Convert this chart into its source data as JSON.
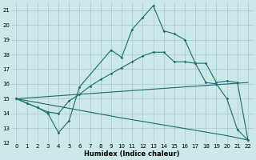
{
  "xlabel": "Humidex (Indice chaleur)",
  "bg_color": "#cce8e8",
  "grid_color": "#aacece",
  "line_color": "#1a6b6b",
  "xlim": [
    -0.5,
    22.5
  ],
  "ylim": [
    12,
    21.5
  ],
  "yticks": [
    12,
    13,
    14,
    15,
    16,
    17,
    18,
    19,
    20,
    21
  ],
  "xticks": [
    0,
    1,
    2,
    3,
    4,
    5,
    6,
    7,
    8,
    9,
    10,
    11,
    12,
    13,
    14,
    15,
    16,
    17,
    18,
    19,
    20,
    21,
    22
  ],
  "lines": [
    {
      "x": [
        0,
        1,
        2,
        3,
        4,
        5,
        6,
        9,
        10,
        11,
        12,
        13,
        14,
        15,
        16,
        17,
        18,
        19,
        20,
        21,
        22
      ],
      "y": [
        15.0,
        14.7,
        14.4,
        14.0,
        12.7,
        13.5,
        15.8,
        18.3,
        17.8,
        19.7,
        20.5,
        21.3,
        19.6,
        19.4,
        19.0,
        17.4,
        17.4,
        16.1,
        16.2,
        16.1,
        12.2
      ],
      "marker": true
    },
    {
      "x": [
        0,
        1,
        2,
        3,
        4,
        5,
        6,
        7,
        8,
        9,
        10,
        11,
        12,
        13,
        14,
        15,
        16,
        17,
        18,
        19,
        20,
        21,
        22
      ],
      "y": [
        15.0,
        14.7,
        14.4,
        14.1,
        14.0,
        14.85,
        15.3,
        15.85,
        16.3,
        16.7,
        17.1,
        17.5,
        17.9,
        18.15,
        18.15,
        17.5,
        17.5,
        17.4,
        16.1,
        16.0,
        15.0,
        12.9,
        12.2
      ],
      "marker": true
    },
    {
      "x": [
        0,
        22
      ],
      "y": [
        15.0,
        16.1
      ],
      "marker": false
    },
    {
      "x": [
        0,
        10,
        20,
        22
      ],
      "y": [
        15.0,
        13.7,
        12.5,
        12.2
      ],
      "marker": false
    }
  ]
}
